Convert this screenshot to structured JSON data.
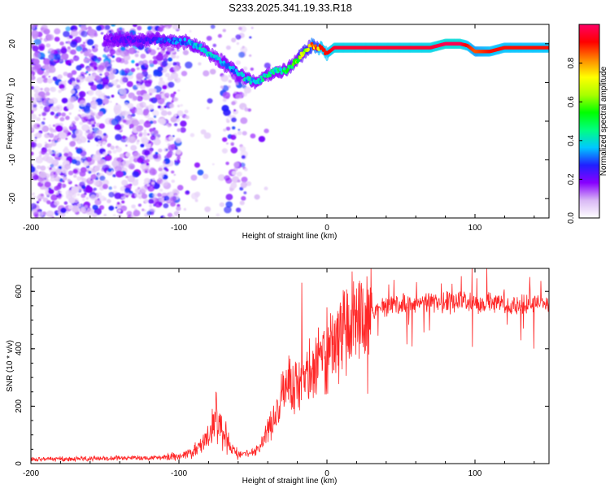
{
  "figure_title": "S233.2025.341.19.33.R18",
  "chart_data": [
    {
      "type": "heatmap",
      "title": "S233.2025.341.19.33.R18",
      "xlabel": "Height of straight line (km)",
      "ylabel": "Frequency (Hz)",
      "xlim": [
        -200,
        150
      ],
      "ylim": [
        -25,
        25
      ],
      "x_ticks": [
        -200,
        -100,
        0,
        100
      ],
      "y_ticks": [
        -20,
        -10,
        0,
        10,
        20
      ],
      "colorbar": {
        "label": "Normalized spectral amplitude",
        "range": [
          0.0,
          1.0
        ],
        "ticks": [
          0.0,
          0.2,
          0.4,
          0.6,
          0.8
        ],
        "colors": [
          "#ffffff",
          "#d9b8f5",
          "#8800ff",
          "#2020ff",
          "#00c8ff",
          "#00ff80",
          "#00ff00",
          "#aaff00",
          "#ffff00",
          "#ff8800",
          "#ff0000",
          "#ff0066"
        ]
      },
      "ridge": {
        "description": "dominant frequency track",
        "x": [
          -150,
          -125,
          -110,
          -95,
          -85,
          -78,
          -70,
          -62,
          -55,
          -48,
          -40,
          -35,
          -28,
          -22,
          -15,
          -10,
          -5,
          0,
          5,
          15,
          40,
          70,
          80,
          90,
          95,
          100,
          110,
          120,
          150
        ],
        "y": [
          21,
          21,
          21,
          20.5,
          19,
          17,
          15,
          13,
          11,
          10,
          12,
          13,
          13,
          15,
          18,
          19.5,
          19,
          17.5,
          19,
          19,
          19,
          19,
          20,
          20,
          19.5,
          18,
          18,
          19,
          19
        ],
        "amplitude": [
          0.2,
          0.25,
          0.3,
          0.35,
          0.4,
          0.4,
          0.35,
          0.35,
          0.4,
          0.4,
          0.45,
          0.45,
          0.5,
          0.6,
          0.7,
          0.85,
          0.9,
          0.9,
          0.95,
          0.95,
          0.95,
          0.95,
          0.98,
          0.98,
          0.9,
          0.85,
          0.9,
          0.9,
          0.9
        ]
      },
      "noise_region": {
        "x_range": [
          -200,
          -55
        ],
        "amplitude_range": [
          0.05,
          0.3
        ]
      }
    },
    {
      "type": "line",
      "xlabel": "Height of straight line (km)",
      "ylabel": "SNR (10 * v/v)",
      "xlim": [
        -200,
        150
      ],
      "ylim": [
        0,
        680
      ],
      "x_ticks": [
        -200,
        -100,
        0,
        100
      ],
      "y_ticks": [
        0,
        200,
        400,
        600
      ],
      "series": [
        {
          "name": "SNR",
          "color": "#ff0000",
          "envelope_x": [
            -200,
            -120,
            -100,
            -90,
            -80,
            -75,
            -70,
            -65,
            -60,
            -50,
            -45,
            -40,
            -35,
            -30,
            -25,
            -20,
            -15,
            -10,
            -5,
            0,
            5,
            10,
            20,
            30,
            40,
            60,
            80,
            95,
            100,
            110,
            120,
            150
          ],
          "envelope_y": [
            15,
            20,
            25,
            40,
            90,
            150,
            110,
            60,
            30,
            40,
            60,
            110,
            160,
            230,
            280,
            290,
            300,
            330,
            350,
            390,
            420,
            460,
            500,
            530,
            550,
            560,
            560,
            570,
            550,
            560,
            555,
            560
          ],
          "peaks": [
            {
              "x": -75,
              "y": 250
            },
            {
              "x": -17,
              "y": 630
            },
            {
              "x": 98,
              "y": 680
            },
            {
              "x": 108,
              "y": 680
            }
          ]
        }
      ]
    }
  ]
}
